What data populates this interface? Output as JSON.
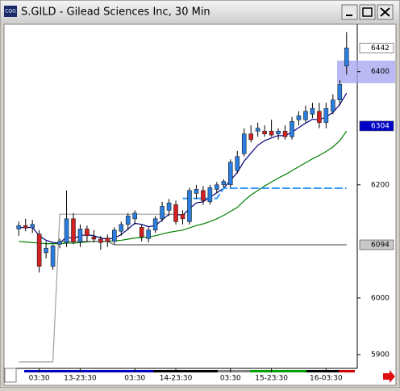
{
  "window": {
    "title": "S.GILD - Gilead Sciences Inc, 30 Min",
    "icon": "CQG"
  },
  "chart_data": {
    "type": "candlestick",
    "categories": [
      null,
      null,
      null,
      "03:30",
      null,
      null,
      null,
      null,
      null,
      "13-23:30",
      null,
      null,
      null,
      null,
      null,
      null,
      null,
      "03:30",
      null,
      null,
      null,
      null,
      null,
      "14-23:30",
      null,
      null,
      null,
      null,
      null,
      null,
      null,
      "03:30",
      null,
      null,
      null,
      null,
      null,
      "15-23:30",
      null,
      null,
      null,
      null,
      null,
      null,
      null,
      "16-03:30",
      null,
      null,
      null
    ],
    "open": [
      6122,
      6128,
      6124,
      6113,
      6080,
      6056,
      6095,
      6098,
      6140,
      6099,
      6122,
      6108,
      6104,
      6106,
      6100,
      6118,
      6130,
      6140,
      6125,
      6105,
      6120,
      6140,
      6155,
      6165,
      6148,
      6135,
      6185,
      6190,
      6170,
      6192,
      6200,
      6200,
      6225,
      6255,
      6290,
      6295,
      6295,
      6295,
      6290,
      6295,
      6285,
      6315,
      6315,
      6325,
      6330,
      6310,
      6330,
      6350,
      6410
    ],
    "high": [
      6135,
      6140,
      6138,
      6120,
      6100,
      6095,
      6105,
      6190,
      6150,
      6130,
      6128,
      6120,
      6110,
      6112,
      6125,
      6135,
      6150,
      6155,
      6130,
      6125,
      6145,
      6170,
      6175,
      6172,
      6155,
      6195,
      6200,
      6198,
      6200,
      6205,
      6210,
      6245,
      6260,
      6300,
      6305,
      6310,
      6305,
      6315,
      6300,
      6305,
      6320,
      6330,
      6340,
      6345,
      6345,
      6345,
      6360,
      6385,
      6470
    ],
    "low": [
      6110,
      6118,
      6115,
      6045,
      6070,
      6050,
      6088,
      6090,
      6095,
      6090,
      6100,
      6098,
      6085,
      6090,
      6095,
      6110,
      6120,
      6130,
      6100,
      6098,
      6115,
      6135,
      6145,
      6130,
      6130,
      6130,
      6175,
      6165,
      6165,
      6185,
      6195,
      6195,
      6220,
      6250,
      6275,
      6285,
      6285,
      6285,
      6280,
      6280,
      6280,
      6305,
      6310,
      6318,
      6300,
      6300,
      6325,
      6340,
      6395
    ],
    "close": [
      6128,
      6124,
      6130,
      6056,
      6088,
      6092,
      6100,
      6140,
      6099,
      6122,
      6110,
      6104,
      6098,
      6100,
      6120,
      6130,
      6145,
      6150,
      6108,
      6120,
      6140,
      6162,
      6168,
      6135,
      6140,
      6190,
      6192,
      6172,
      6195,
      6200,
      6206,
      6240,
      6250,
      6290,
      6280,
      6300,
      6290,
      6288,
      6295,
      6285,
      6312,
      6322,
      6330,
      6335,
      6310,
      6335,
      6350,
      6378,
      6442
    ],
    "up_color": "#2a7de1",
    "down_color": "#d42020",
    "ylim": [
      5877,
      6481
    ],
    "yticks": [
      5900,
      6000,
      6200,
      6400
    ],
    "overlays": [
      {
        "color": "#008000",
        "values": [
          6100,
          6099,
          6098,
          6097,
          6096,
          6096,
          6096,
          6097,
          6097,
          6098,
          6099,
          6100,
          6100,
          6100,
          6101,
          6102,
          6104,
          6106,
          6107,
          6108,
          6110,
          6113,
          6116,
          6118,
          6120,
          6124,
          6128,
          6131,
          6135,
          6140,
          6146,
          6153,
          6160,
          6172,
          6182,
          6190,
          6198,
          6205,
          6212,
          6218,
          6225,
          6232,
          6239,
          6246,
          6252,
          6259,
          6267,
          6278,
          6295
        ]
      },
      {
        "color": "#000080",
        "values": [
          6125,
          6124,
          6125,
          6110,
          6102,
          6098,
          6097,
          6108,
          6105,
          6110,
          6112,
          6110,
          6106,
          6104,
          6106,
          6112,
          6122,
          6132,
          6130,
          6126,
          6128,
          6138,
          6148,
          6148,
          6146,
          6158,
          6168,
          6170,
          6178,
          6186,
          6194,
          6208,
          6222,
          6242,
          6256,
          6270,
          6278,
          6283,
          6287,
          6287,
          6293,
          6301,
          6309,
          6316,
          6315,
          6320,
          6328,
          6342,
          6362
        ]
      },
      {
        "color": "#a0a0a0",
        "values": [
          5887,
          5887,
          5887,
          5887,
          5887,
          5887,
          6148,
          6148,
          6148,
          6148,
          6148,
          6148,
          6148,
          6148,
          6148,
          6148,
          6148,
          6148,
          6148,
          6148,
          6148,
          6148,
          6148,
          6148,
          null,
          null,
          null,
          null,
          null,
          null,
          null,
          null,
          null,
          null,
          null,
          null,
          null,
          null,
          null,
          null,
          null,
          null,
          null,
          null,
          null,
          null,
          null,
          null,
          null
        ]
      },
      {
        "color": "#3399ff",
        "dashed": true,
        "values": [
          null,
          null,
          null,
          null,
          null,
          null,
          null,
          null,
          null,
          null,
          null,
          null,
          null,
          null,
          null,
          null,
          null,
          null,
          null,
          null,
          null,
          null,
          null,
          null,
          6176,
          6176,
          6176,
          6176,
          6176,
          6176,
          6194,
          6194,
          6194,
          6194,
          6194,
          6194,
          6194,
          6194,
          6194,
          6194,
          6194,
          6194,
          6194,
          6194,
          6194,
          6194,
          6194,
          6194,
          6194
        ]
      },
      {
        "color": "#606060",
        "values": [
          null,
          null,
          null,
          null,
          null,
          null,
          6100,
          6100,
          6100,
          6100,
          6100,
          6100,
          6100,
          6100,
          6094,
          6094,
          6094,
          6094,
          6094,
          6094,
          6094,
          6094,
          6094,
          6094,
          6094,
          6094,
          6094,
          6094,
          6094,
          6094,
          6094,
          6094,
          6094,
          6094,
          6094,
          6094,
          6094,
          6094,
          6094,
          6094,
          6094,
          6094,
          6094,
          6094,
          6094,
          6094,
          6094,
          6094,
          6094
        ]
      }
    ],
    "price_markers": [
      {
        "value": 6442,
        "color": "#ffffff",
        "text_color": "#000000"
      },
      {
        "value": 6304,
        "color": "#0000c8",
        "text_color": "#ffffff"
      },
      {
        "value": 6094,
        "color": "#c8c8c8",
        "text_color": "#000000"
      }
    ]
  }
}
